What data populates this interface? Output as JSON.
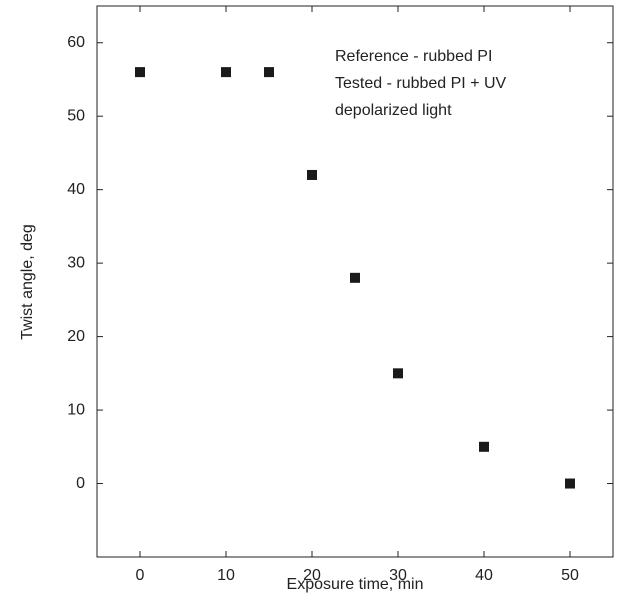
{
  "chart_data": {
    "type": "scatter",
    "x_label": "Exposure time, min",
    "y_label": "Twist angle, deg",
    "annotations": [
      "Reference - rubbed PI",
      "Tested - rubbed PI + UV",
      "depolarized light"
    ],
    "x": [
      0,
      10,
      15,
      20,
      25,
      30,
      40,
      50
    ],
    "values": [
      56,
      56,
      56,
      42,
      28,
      15,
      5,
      0
    ],
    "color": "#1a1a1a",
    "xlim": [
      -5,
      55
    ],
    "xticks": [
      0,
      10,
      20,
      30,
      40,
      50
    ],
    "ylim": [
      -10,
      65
    ],
    "yticks": [
      0,
      10,
      20,
      30,
      40,
      50,
      60
    ]
  }
}
